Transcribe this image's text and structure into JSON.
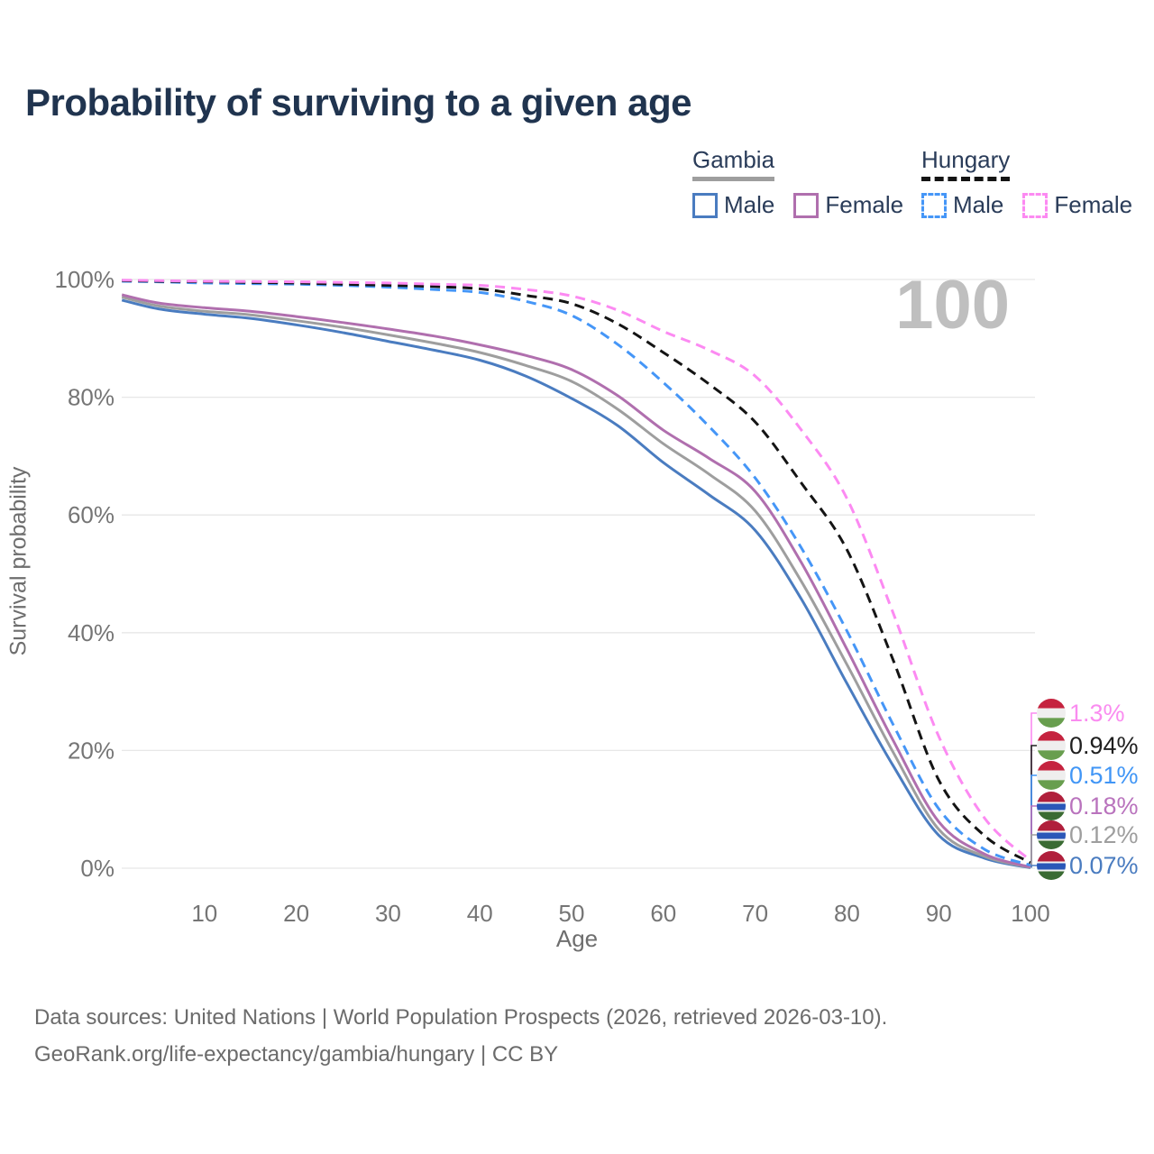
{
  "title": "Probability of surviving to a given age",
  "watermark_age": "100",
  "legend": {
    "groups": [
      {
        "title": "Gambia",
        "line_style": "solid",
        "line_color": "#9e9e9e",
        "items": [
          {
            "label": "Male",
            "color": "#4a7cc0",
            "style": "solid"
          },
          {
            "label": "Female",
            "color": "#b06fae",
            "style": "solid"
          }
        ]
      },
      {
        "title": "Hungary",
        "line_style": "dashed",
        "line_color": "#141414",
        "items": [
          {
            "label": "Male",
            "color": "#4596f7",
            "style": "dashed"
          },
          {
            "label": "Female",
            "color": "#fc8af2",
            "style": "dashed"
          }
        ]
      }
    ]
  },
  "axes": {
    "x": {
      "label": "Age",
      "min": 0,
      "max": 100,
      "ticks": [
        {
          "label": "10",
          "value": 10
        },
        {
          "label": "20",
          "value": 20
        },
        {
          "label": "30",
          "value": 30
        },
        {
          "label": "40",
          "value": 40
        },
        {
          "label": "50",
          "value": 50
        },
        {
          "label": "60",
          "value": 60
        },
        {
          "label": "70",
          "value": 70
        },
        {
          "label": "80",
          "value": 80
        },
        {
          "label": "90",
          "value": 90
        },
        {
          "label": "100",
          "value": 100
        }
      ]
    },
    "y": {
      "label": "Survival probability",
      "min": 0,
      "max": 100,
      "grid": true,
      "ticks": [
        {
          "label": "0%",
          "value": 0
        },
        {
          "label": "20%",
          "value": 20
        },
        {
          "label": "40%",
          "value": 40
        },
        {
          "label": "60%",
          "value": 60
        },
        {
          "label": "80%",
          "value": 80
        },
        {
          "label": "100%",
          "value": 100
        }
      ]
    }
  },
  "end_labels": [
    {
      "text": "1.3%",
      "value": 1.3,
      "flag": "hungary",
      "color": "#fa8cf0"
    },
    {
      "text": "0.94%",
      "value": 0.94,
      "flag": "hungary",
      "color": "#1f1f1f"
    },
    {
      "text": "0.51%",
      "value": 0.51,
      "flag": "hungary",
      "color": "#4196f6"
    },
    {
      "text": "0.18%",
      "value": 0.18,
      "flag": "gambia",
      "color": "#b973bd"
    },
    {
      "text": "0.12%",
      "value": 0.12,
      "flag": "gambia",
      "color": "#9e9e9e"
    },
    {
      "text": "0.07%",
      "value": 0.07,
      "flag": "gambia",
      "color": "#4a7cc0"
    }
  ],
  "footer": {
    "line1": "Data sources: United Nations | World Population Prospects (2026, retrieved 2026-03-10).",
    "line2": "GeoRank.org/life-expectancy/gambia/hungary | CC BY"
  },
  "colors": {
    "title": "#20344f",
    "axis_text": "#757575",
    "gridline": "#e7e7e7",
    "watermark": "#bfbfbf",
    "footer_text": "#6b6b6b"
  },
  "chart_data": {
    "type": "line",
    "title": "Probability of surviving to a given age",
    "xlabel": "Age",
    "ylabel": "Survival probability",
    "xlim": [
      0,
      100
    ],
    "ylim": [
      0,
      100
    ],
    "x": [
      1,
      5,
      10,
      15,
      20,
      25,
      30,
      35,
      40,
      45,
      50,
      55,
      60,
      65,
      70,
      75,
      80,
      85,
      90,
      95,
      100
    ],
    "series": [
      {
        "id": "gambia-male",
        "name": "Gambia Male",
        "color": "#4a7cc0",
        "style": "solid",
        "values": [
          96.5,
          95.0,
          94.1,
          93.4,
          92.3,
          91.0,
          89.5,
          88.0,
          86.3,
          83.6,
          79.8,
          75.2,
          68.9,
          63.4,
          57.4,
          45.8,
          31.4,
          17.5,
          5.6,
          1.7,
          0.07
        ]
      },
      {
        "id": "gambia-overall",
        "name": "Gambia",
        "color": "#9e9e9e",
        "style": "solid",
        "values": [
          97.0,
          95.5,
          94.6,
          94.0,
          93.0,
          91.9,
          90.6,
          89.2,
          87.6,
          85.4,
          82.7,
          78.0,
          72.1,
          66.9,
          60.7,
          48.8,
          34.6,
          19.8,
          6.6,
          2.0,
          0.12
        ]
      },
      {
        "id": "gambia-female",
        "name": "Gambia Female",
        "color": "#b06fae",
        "style": "solid",
        "values": [
          97.4,
          96.0,
          95.2,
          94.6,
          93.7,
          92.7,
          91.6,
          90.4,
          88.9,
          87.1,
          84.7,
          80.3,
          74.4,
          69.6,
          64.0,
          52.0,
          37.2,
          21.8,
          7.9,
          2.4,
          0.18
        ]
      },
      {
        "id": "hungary-male",
        "name": "Hungary Male",
        "color": "#4596f7",
        "style": "dashed",
        "values": [
          99.7,
          99.6,
          99.4,
          99.3,
          99.2,
          99.0,
          98.7,
          98.3,
          97.8,
          96.3,
          93.9,
          89.0,
          82.5,
          75.0,
          66.3,
          54.5,
          40.3,
          24.5,
          10.1,
          3.2,
          0.51
        ]
      },
      {
        "id": "hungary-overall",
        "name": "Hungary",
        "color": "#141414",
        "style": "dashed",
        "values": [
          99.8,
          99.7,
          99.6,
          99.5,
          99.4,
          99.2,
          99.0,
          98.8,
          98.4,
          97.3,
          95.9,
          92.5,
          87.6,
          82.2,
          75.8,
          65.5,
          54.1,
          35.5,
          15.0,
          5.5,
          0.94
        ]
      },
      {
        "id": "hungary-female",
        "name": "Hungary Female",
        "color": "#fc8af2",
        "style": "dashed",
        "values": [
          99.9,
          99.8,
          99.7,
          99.65,
          99.6,
          99.5,
          99.4,
          99.2,
          99.0,
          98.3,
          97.2,
          94.8,
          91.2,
          88.0,
          83.6,
          74.5,
          62.8,
          43.5,
          22.4,
          8.5,
          1.3
        ]
      }
    ]
  }
}
